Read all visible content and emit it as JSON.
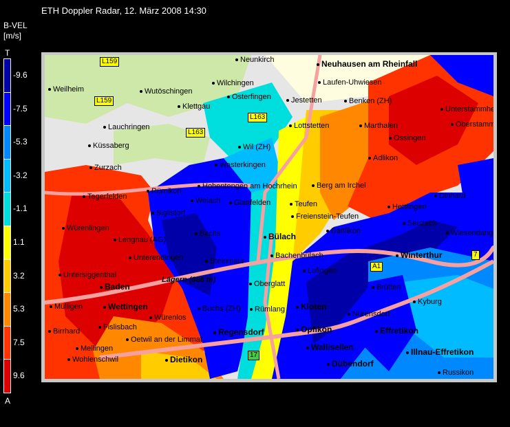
{
  "title": "ETH Doppler Radar, 12. März 2008 14:30",
  "legend": {
    "quantity": "B-VEL",
    "unit": "[m/s]",
    "top_label": "T",
    "bottom_label": "A",
    "bins": [
      {
        "label": "-9.6",
        "color": "#0000a8"
      },
      {
        "label": "-7.5",
        "color": "#0000ff"
      },
      {
        "label": "-5.3",
        "color": "#0088ff"
      },
      {
        "label": "-3.2",
        "color": "#00bbff"
      },
      {
        "label": "-1.1",
        "color": "#00dddd"
      },
      {
        "label": "1.1",
        "color": "#ffff00"
      },
      {
        "label": "3.2",
        "color": "#ffcc00"
      },
      {
        "label": "5.3",
        "color": "#ff8800"
      },
      {
        "label": "7.5",
        "color": "#ff3300"
      },
      {
        "label": "9.6",
        "color": "#dd0000"
      }
    ]
  },
  "map": {
    "places": [
      "Neunkirch",
      "Neuhausen am Rheinfall",
      "Weilheim",
      "Wutöschingen",
      "Wilchingen",
      "Osterfingen",
      "Laufen-Uhwiesen",
      "Jestetten",
      "Benken (ZH)",
      "Klettgau",
      "Lottstetten",
      "Marthalen",
      "Lauchringen",
      "Küssaberg",
      "Wil (ZH)",
      "Zurzach",
      "Wasterkingen",
      "Adlikon",
      "Hohentengen am Hochrhein",
      "Berg am Irchel",
      "Glattfelden",
      "Teufen",
      "Freienstein-Teufen",
      "Hettlingen",
      "Dinhard",
      "Bülach",
      "Dättlikon",
      "Bachs",
      "Winterthur",
      "Steinmaur",
      "Bachenbülach",
      "Lufingen",
      "Oberglatt",
      "Lägern (866 m)",
      "Baden",
      "Wettingen",
      "Buchs (ZH)",
      "Rümlang",
      "Kloten",
      "Kyburg",
      "Nürensdorf",
      "Brütten",
      "Regensdorf",
      "Opfikon",
      "Effretikon",
      "Illnau-Effretikon",
      "Wallisellen",
      "Dübendorf",
      "Dietikon",
      "Wohlenschwil",
      "Mellingen",
      "Birrhard",
      "Fislisbach",
      "Oetwil an der Limmat",
      "Würenlingen",
      "Untersiggenthal",
      "Lengnau (AG)",
      "Unterendingen",
      "Mülligen",
      "Russikon",
      "Wiesendangen",
      "Seuzach",
      "Unterstammheim",
      "Oberstammheim",
      "Ossingen",
      "Siglistorf",
      "Rümikon",
      "Weiach",
      "Tegerfelden",
      "Würenlos"
    ],
    "roads": [
      "L159",
      "L159",
      "L163",
      "L163",
      "A1",
      "17",
      "7"
    ]
  }
}
